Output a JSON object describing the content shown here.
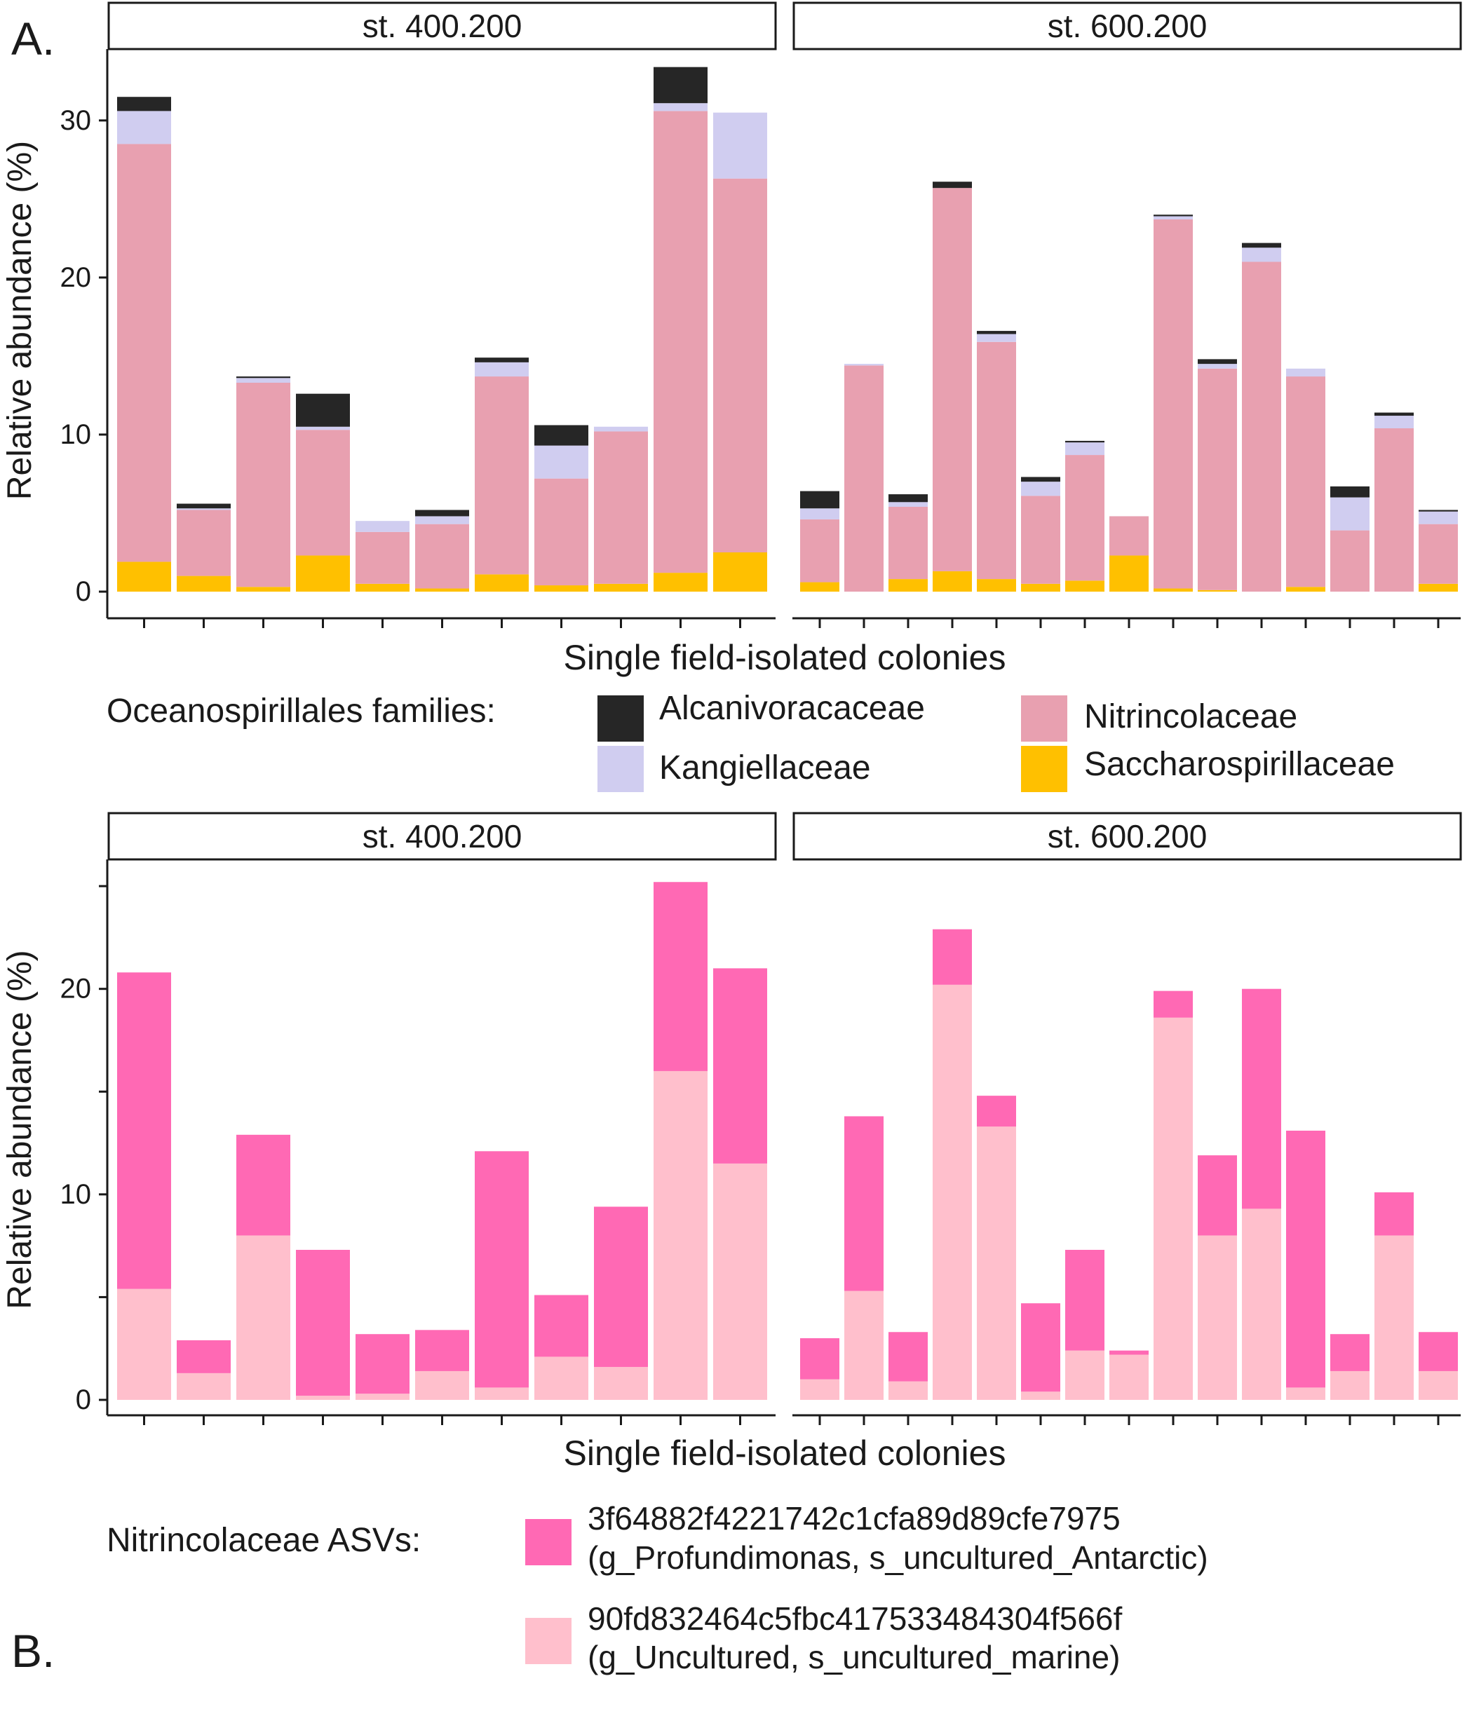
{
  "chart_data": [
    {
      "panel_label": "A.",
      "type": "bar",
      "stacked": true,
      "ylabel": "Relative abundance (%)",
      "xlabel": "Single field-isolated colonies",
      "yticks": [
        0,
        10,
        20,
        30
      ],
      "ylim": [
        0,
        34.5
      ],
      "grid": false,
      "legend": {
        "title": "Oceanospirillales families:",
        "position": "bottom",
        "entries": [
          "Alcanivoracaceae",
          "Kangiellaceae",
          "Nitrincolaceae",
          "Saccharospirillaceae"
        ]
      },
      "stack_order": [
        "Saccharospirillaceae",
        "Nitrincolaceae",
        "Kangiellaceae",
        "Alcanivoracaceae"
      ],
      "colors": {
        "Alcanivoracaceae": "#262626",
        "Kangiellaceae": "#d0cdf0",
        "Nitrincolaceae": "#e8a0b0",
        "Saccharospirillaceae": "#ffc000"
      },
      "facets": [
        {
          "title": "st. 400.200",
          "bars": [
            {
              "Saccharospirillaceae": 1.9,
              "Nitrincolaceae": 26.6,
              "Kangiellaceae": 2.1,
              "Alcanivoracaceae": 0.9
            },
            {
              "Saccharospirillaceae": 1.0,
              "Nitrincolaceae": 4.2,
              "Kangiellaceae": 0.1,
              "Alcanivoracaceae": 0.3
            },
            {
              "Saccharospirillaceae": 0.3,
              "Nitrincolaceae": 13.0,
              "Kangiellaceae": 0.3,
              "Alcanivoracaceae": 0.1
            },
            {
              "Saccharospirillaceae": 2.3,
              "Nitrincolaceae": 8.0,
              "Kangiellaceae": 0.2,
              "Alcanivoracaceae": 2.1
            },
            {
              "Saccharospirillaceae": 0.5,
              "Nitrincolaceae": 3.3,
              "Kangiellaceae": 0.7,
              "Alcanivoracaceae": 0.0
            },
            {
              "Saccharospirillaceae": 0.2,
              "Nitrincolaceae": 4.1,
              "Kangiellaceae": 0.5,
              "Alcanivoracaceae": 0.4
            },
            {
              "Saccharospirillaceae": 1.1,
              "Nitrincolaceae": 12.6,
              "Kangiellaceae": 0.9,
              "Alcanivoracaceae": 0.3
            },
            {
              "Saccharospirillaceae": 0.4,
              "Nitrincolaceae": 6.8,
              "Kangiellaceae": 2.1,
              "Alcanivoracaceae": 1.3
            },
            {
              "Saccharospirillaceae": 0.5,
              "Nitrincolaceae": 9.7,
              "Kangiellaceae": 0.3,
              "Alcanivoracaceae": 0.0
            },
            {
              "Saccharospirillaceae": 1.2,
              "Nitrincolaceae": 29.4,
              "Kangiellaceae": 0.5,
              "Alcanivoracaceae": 2.3
            },
            {
              "Saccharospirillaceae": 2.5,
              "Nitrincolaceae": 23.8,
              "Kangiellaceae": 4.2,
              "Alcanivoracaceae": 0.0
            }
          ]
        },
        {
          "title": "st. 600.200",
          "bars": [
            {
              "Saccharospirillaceae": 0.6,
              "Nitrincolaceae": 4.0,
              "Kangiellaceae": 0.7,
              "Alcanivoracaceae": 1.1
            },
            {
              "Saccharospirillaceae": 0.0,
              "Nitrincolaceae": 14.4,
              "Kangiellaceae": 0.1,
              "Alcanivoracaceae": 0.0
            },
            {
              "Saccharospirillaceae": 0.8,
              "Nitrincolaceae": 4.6,
              "Kangiellaceae": 0.3,
              "Alcanivoracaceae": 0.5
            },
            {
              "Saccharospirillaceae": 1.3,
              "Nitrincolaceae": 24.4,
              "Kangiellaceae": 0.0,
              "Alcanivoracaceae": 0.4
            },
            {
              "Saccharospirillaceae": 0.8,
              "Nitrincolaceae": 15.1,
              "Kangiellaceae": 0.5,
              "Alcanivoracaceae": 0.2
            },
            {
              "Saccharospirillaceae": 0.5,
              "Nitrincolaceae": 5.6,
              "Kangiellaceae": 0.9,
              "Alcanivoracaceae": 0.3
            },
            {
              "Saccharospirillaceae": 0.7,
              "Nitrincolaceae": 8.0,
              "Kangiellaceae": 0.8,
              "Alcanivoracaceae": 0.1
            },
            {
              "Saccharospirillaceae": 2.3,
              "Nitrincolaceae": 2.5,
              "Kangiellaceae": 0.0,
              "Alcanivoracaceae": 0.0
            },
            {
              "Saccharospirillaceae": 0.2,
              "Nitrincolaceae": 23.5,
              "Kangiellaceae": 0.2,
              "Alcanivoracaceae": 0.1
            },
            {
              "Saccharospirillaceae": 0.1,
              "Nitrincolaceae": 14.1,
              "Kangiellaceae": 0.3,
              "Alcanivoracaceae": 0.3
            },
            {
              "Saccharospirillaceae": 0.0,
              "Nitrincolaceae": 21.0,
              "Kangiellaceae": 0.9,
              "Alcanivoracaceae": 0.3
            },
            {
              "Saccharospirillaceae": 0.3,
              "Nitrincolaceae": 13.4,
              "Kangiellaceae": 0.5,
              "Alcanivoracaceae": 0.0
            },
            {
              "Saccharospirillaceae": 0.0,
              "Nitrincolaceae": 3.9,
              "Kangiellaceae": 2.1,
              "Alcanivoracaceae": 0.7
            },
            {
              "Saccharospirillaceae": 0.0,
              "Nitrincolaceae": 10.4,
              "Kangiellaceae": 0.8,
              "Alcanivoracaceae": 0.2
            },
            {
              "Saccharospirillaceae": 0.5,
              "Nitrincolaceae": 3.8,
              "Kangiellaceae": 0.8,
              "Alcanivoracaceae": 0.1
            }
          ]
        }
      ]
    },
    {
      "panel_label": "B.",
      "type": "bar",
      "stacked": true,
      "ylabel": "Relative abundance (%)",
      "xlabel": "Single field-isolated colonies",
      "yticks": [
        0,
        10,
        20
      ],
      "minor_yticks": [
        5,
        15,
        25
      ],
      "ylim": [
        0,
        26.3
      ],
      "grid": false,
      "legend": {
        "title": "Nitrincolaceae ASVs:",
        "position": "bottom",
        "entries": [
          [
            "3f64882f4221742c1cfa89d89cfe7975",
            "(g_Profundimonas, s_uncultured_Antarctic)"
          ],
          [
            "90fd832464c5fbc417533484304f566f",
            "(g_Uncultured, s_uncultured_marine)"
          ]
        ]
      },
      "series_names": [
        "3f64882f4221742c1cfa89d89cfe7975",
        "90fd832464c5fbc417533484304f566f"
      ],
      "colors": {
        "3f64882f4221742c1cfa89d89cfe7975": "#ff69b4",
        "90fd832464c5fbc417533484304f566f": "#ffbfcc"
      },
      "facets": [
        {
          "title": "st. 400.200",
          "bars": [
            {
              "90fd832464c5fbc417533484304f566f": 5.4,
              "3f64882f4221742c1cfa89d89cfe7975": 15.4
            },
            {
              "90fd832464c5fbc417533484304f566f": 1.3,
              "3f64882f4221742c1cfa89d89cfe7975": 1.6
            },
            {
              "90fd832464c5fbc417533484304f566f": 8.0,
              "3f64882f4221742c1cfa89d89cfe7975": 4.9
            },
            {
              "90fd832464c5fbc417533484304f566f": 0.2,
              "3f64882f4221742c1cfa89d89cfe7975": 7.1
            },
            {
              "90fd832464c5fbc417533484304f566f": 0.3,
              "3f64882f4221742c1cfa89d89cfe7975": 2.9
            },
            {
              "90fd832464c5fbc417533484304f566f": 1.4,
              "3f64882f4221742c1cfa89d89cfe7975": 2.0
            },
            {
              "90fd832464c5fbc417533484304f566f": 0.6,
              "3f64882f4221742c1cfa89d89cfe7975": 11.5
            },
            {
              "90fd832464c5fbc417533484304f566f": 2.1,
              "3f64882f4221742c1cfa89d89cfe7975": 3.0
            },
            {
              "90fd832464c5fbc417533484304f566f": 1.6,
              "3f64882f4221742c1cfa89d89cfe7975": 7.8
            },
            {
              "90fd832464c5fbc417533484304f566f": 16.0,
              "3f64882f4221742c1cfa89d89cfe7975": 9.2
            },
            {
              "90fd832464c5fbc417533484304f566f": 11.5,
              "3f64882f4221742c1cfa89d89cfe7975": 9.5
            }
          ]
        },
        {
          "title": "st. 600.200",
          "bars": [
            {
              "90fd832464c5fbc417533484304f566f": 1.0,
              "3f64882f4221742c1cfa89d89cfe7975": 2.0
            },
            {
              "90fd832464c5fbc417533484304f566f": 5.3,
              "3f64882f4221742c1cfa89d89cfe7975": 8.5
            },
            {
              "90fd832464c5fbc417533484304f566f": 0.9,
              "3f64882f4221742c1cfa89d89cfe7975": 2.4
            },
            {
              "90fd832464c5fbc417533484304f566f": 20.2,
              "3f64882f4221742c1cfa89d89cfe7975": 2.7
            },
            {
              "90fd832464c5fbc417533484304f566f": 13.3,
              "3f64882f4221742c1cfa89d89cfe7975": 1.5
            },
            {
              "90fd832464c5fbc417533484304f566f": 0.4,
              "3f64882f4221742c1cfa89d89cfe7975": 4.3
            },
            {
              "90fd832464c5fbc417533484304f566f": 2.4,
              "3f64882f4221742c1cfa89d89cfe7975": 4.9
            },
            {
              "90fd832464c5fbc417533484304f566f": 2.2,
              "3f64882f4221742c1cfa89d89cfe7975": 0.2
            },
            {
              "90fd832464c5fbc417533484304f566f": 18.6,
              "3f64882f4221742c1cfa89d89cfe7975": 1.3
            },
            {
              "90fd832464c5fbc417533484304f566f": 8.0,
              "3f64882f4221742c1cfa89d89cfe7975": 3.9
            },
            {
              "90fd832464c5fbc417533484304f566f": 9.3,
              "3f64882f4221742c1cfa89d89cfe7975": 10.7
            },
            {
              "90fd832464c5fbc417533484304f566f": 0.6,
              "3f64882f4221742c1cfa89d89cfe7975": 12.5
            },
            {
              "90fd832464c5fbc417533484304f566f": 1.4,
              "3f64882f4221742c1cfa89d89cfe7975": 1.8
            },
            {
              "90fd832464c5fbc417533484304f566f": 8.0,
              "3f64882f4221742c1cfa89d89cfe7975": 2.1
            },
            {
              "90fd832464c5fbc417533484304f566f": 1.4,
              "3f64882f4221742c1cfa89d89cfe7975": 1.9
            }
          ]
        }
      ]
    }
  ]
}
